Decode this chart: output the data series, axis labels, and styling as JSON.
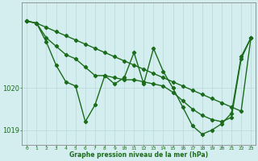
{
  "xlabel": "Graphe pression niveau de la mer (hPa)",
  "x": [
    0,
    1,
    2,
    3,
    4,
    5,
    6,
    7,
    8,
    9,
    10,
    11,
    12,
    13,
    14,
    15,
    16,
    17,
    18,
    19,
    20,
    21,
    22,
    23
  ],
  "line_straight": [
    1021.6,
    1021.55,
    1021.45,
    1021.35,
    1021.25,
    1021.15,
    1021.05,
    1020.95,
    1020.85,
    1020.75,
    1020.65,
    1020.55,
    1020.45,
    1020.35,
    1020.25,
    1020.15,
    1020.05,
    1019.95,
    1019.85,
    1019.75,
    1019.65,
    1019.55,
    1019.45,
    1021.2
  ],
  "line_mid": [
    1021.6,
    1021.55,
    1021.2,
    1021.0,
    1020.8,
    1020.7,
    1020.5,
    1020.3,
    1020.3,
    1020.25,
    1020.2,
    1020.2,
    1020.15,
    1020.1,
    1020.05,
    1019.9,
    1019.7,
    1019.5,
    1019.35,
    1019.25,
    1019.2,
    1019.3,
    1020.7,
    1021.2
  ],
  "line_detail": [
    1021.6,
    1021.55,
    1021.1,
    1020.55,
    1020.15,
    1020.05,
    1019.2,
    1019.6,
    1020.3,
    1020.1,
    1020.25,
    1020.85,
    1020.1,
    1020.95,
    1020.4,
    1020.0,
    1019.55,
    1019.1,
    1018.9,
    1019.0,
    1019.15,
    1019.4,
    1020.75,
    1021.2
  ],
  "background": "#d4eef0",
  "grid_color": "#b8d8da",
  "line_color": "#1a6b1a",
  "ylim_min": 1018.65,
  "ylim_max": 1022.05,
  "ytick_positions": [
    1019.0,
    1020.0
  ],
  "ytick_labels": [
    "1019",
    "1020"
  ],
  "marker": "D",
  "markersize": 2.2,
  "linewidth": 1.0
}
